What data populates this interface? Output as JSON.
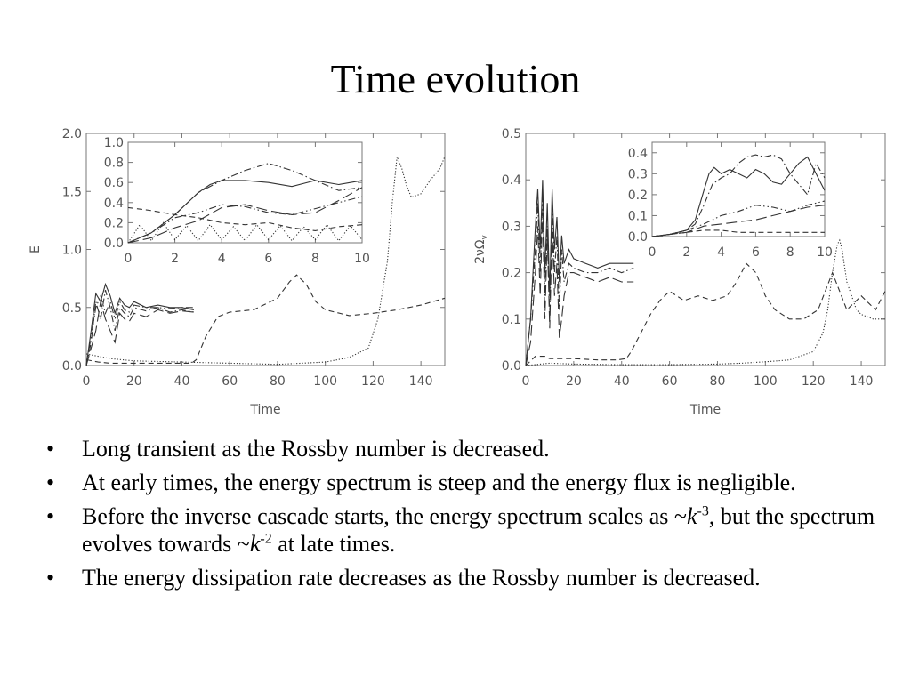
{
  "slide": {
    "title": "Time evolution"
  },
  "chart_data": [
    {
      "id": "left-main",
      "type": "line",
      "xlabel": "Time",
      "ylabel": "E",
      "xlim": [
        0,
        150
      ],
      "ylim": [
        0,
        2.0
      ],
      "xticks": [
        "0",
        "20",
        "40",
        "60",
        "80",
        "100",
        "120",
        "140"
      ],
      "yticks": [
        "0.0",
        "0.5",
        "1.0",
        "1.5",
        "2.0"
      ],
      "series": [
        {
          "style": "dotted",
          "x": [
            0,
            5,
            10,
            20,
            40,
            60,
            80,
            100,
            110,
            118,
            122,
            126,
            128,
            130,
            132,
            134,
            136,
            140,
            144,
            148,
            150
          ],
          "y": [
            0.1,
            0.08,
            0.06,
            0.04,
            0.03,
            0.02,
            0.01,
            0.03,
            0.07,
            0.15,
            0.4,
            0.9,
            1.4,
            1.8,
            1.7,
            1.55,
            1.45,
            1.48,
            1.6,
            1.7,
            1.8
          ]
        },
        {
          "style": "dashed",
          "x": [
            0,
            5,
            10,
            20,
            30,
            40,
            44,
            46,
            50,
            55,
            60,
            70,
            80,
            85,
            88,
            92,
            96,
            100,
            110,
            120,
            130,
            140,
            150
          ],
          "y": [
            0.05,
            0.03,
            0.02,
            0.02,
            0.02,
            0.02,
            0.02,
            0.05,
            0.25,
            0.42,
            0.46,
            0.48,
            0.58,
            0.72,
            0.78,
            0.7,
            0.55,
            0.48,
            0.43,
            0.45,
            0.48,
            0.52,
            0.58
          ]
        },
        {
          "style": "solid",
          "x": [
            0,
            2,
            4,
            6,
            8,
            10,
            12,
            14,
            16,
            18,
            20,
            25,
            30,
            35,
            40,
            45
          ],
          "y": [
            0.0,
            0.3,
            0.62,
            0.55,
            0.7,
            0.6,
            0.45,
            0.58,
            0.52,
            0.5,
            0.55,
            0.5,
            0.52,
            0.5,
            0.5,
            0.48
          ]
        },
        {
          "style": "dash-dot",
          "x": [
            0,
            2,
            4,
            6,
            8,
            10,
            12,
            14,
            16,
            18,
            20,
            25,
            30,
            35,
            40,
            45
          ],
          "y": [
            0.0,
            0.2,
            0.55,
            0.4,
            0.65,
            0.5,
            0.3,
            0.5,
            0.45,
            0.42,
            0.5,
            0.47,
            0.5,
            0.46,
            0.48,
            0.46
          ]
        },
        {
          "style": "dash-dot-dot",
          "x": [
            0,
            2,
            4,
            6,
            8,
            10,
            12,
            14,
            16,
            18,
            20,
            25,
            30,
            35,
            40,
            45
          ],
          "y": [
            0.0,
            0.25,
            0.5,
            0.6,
            0.45,
            0.55,
            0.4,
            0.55,
            0.48,
            0.46,
            0.52,
            0.5,
            0.5,
            0.49,
            0.5,
            0.5
          ]
        },
        {
          "style": "long-dash",
          "x": [
            0,
            2,
            4,
            6,
            8,
            10,
            12,
            14,
            16,
            18,
            20,
            25,
            30,
            35,
            40,
            45
          ],
          "y": [
            0.0,
            0.15,
            0.3,
            0.55,
            0.4,
            0.3,
            0.2,
            0.45,
            0.4,
            0.38,
            0.45,
            0.42,
            0.48,
            0.45,
            0.47,
            0.46
          ]
        }
      ]
    },
    {
      "id": "left-inset",
      "type": "line",
      "xlim": [
        0,
        10
      ],
      "ylim": [
        0,
        1.0
      ],
      "xticks": [
        "0",
        "2",
        "4",
        "6",
        "8",
        "10"
      ],
      "yticks": [
        "0.0",
        "0.2",
        "0.4",
        "0.6",
        "0.8",
        "1.0"
      ],
      "series": [
        {
          "style": "solid",
          "x": [
            0,
            1,
            2,
            3,
            3.5,
            4,
            5,
            6,
            7,
            8,
            9,
            10
          ],
          "y": [
            0.0,
            0.1,
            0.28,
            0.5,
            0.58,
            0.62,
            0.62,
            0.6,
            0.56,
            0.62,
            0.58,
            0.62
          ]
        },
        {
          "style": "dash-dot",
          "x": [
            0,
            1,
            2,
            3,
            4,
            5,
            6,
            7,
            8,
            9,
            10
          ],
          "y": [
            0.0,
            0.1,
            0.28,
            0.5,
            0.62,
            0.72,
            0.79,
            0.72,
            0.62,
            0.52,
            0.55
          ]
        },
        {
          "style": "dash-dot-dot",
          "x": [
            0,
            1,
            2,
            3,
            4,
            5,
            6,
            7,
            8,
            9,
            10
          ],
          "y": [
            0.0,
            0.1,
            0.25,
            0.3,
            0.38,
            0.36,
            0.3,
            0.28,
            0.34,
            0.4,
            0.46
          ]
        },
        {
          "style": "long-dash",
          "x": [
            0,
            1,
            2,
            3,
            4,
            5,
            6,
            7,
            8,
            9,
            10
          ],
          "y": [
            0.0,
            0.05,
            0.15,
            0.22,
            0.35,
            0.38,
            0.32,
            0.28,
            0.3,
            0.42,
            0.55
          ]
        },
        {
          "style": "dashed",
          "x": [
            0,
            1,
            2,
            3,
            4,
            5,
            6,
            7,
            8,
            9,
            10
          ],
          "y": [
            0.35,
            0.32,
            0.28,
            0.25,
            0.2,
            0.18,
            0.2,
            0.15,
            0.12,
            0.16,
            0.18
          ]
        },
        {
          "style": "dotted",
          "x": [
            0,
            0.5,
            1,
            1.5,
            2,
            2.5,
            3,
            3.5,
            4,
            4.5,
            5,
            5.5,
            6,
            6.5,
            7,
            7.5,
            8,
            8.5,
            9,
            9.5,
            10
          ],
          "y": [
            0.0,
            0.18,
            0.02,
            0.2,
            0.03,
            0.17,
            0.02,
            0.18,
            0.03,
            0.16,
            0.02,
            0.18,
            0.03,
            0.17,
            0.02,
            0.16,
            0.03,
            0.18,
            0.02,
            0.17,
            0.03
          ]
        }
      ]
    },
    {
      "id": "right-main",
      "type": "line",
      "xlabel": "Time",
      "ylabel": "2νΩ",
      "ylabel_sub": "v",
      "xlim": [
        0,
        150
      ],
      "ylim": [
        0,
        0.5
      ],
      "xticks": [
        "0",
        "20",
        "40",
        "60",
        "80",
        "100",
        "120",
        "140"
      ],
      "yticks": [
        "0.0",
        "0.1",
        "0.2",
        "0.3",
        "0.4",
        "0.5"
      ],
      "series": [
        {
          "style": "dotted",
          "x": [
            0,
            10,
            20,
            40,
            60,
            80,
            90,
            100,
            110,
            120,
            124,
            126,
            128,
            130,
            131,
            132,
            134,
            136,
            138,
            140,
            145,
            150
          ],
          "y": [
            0.0,
            0.005,
            0.003,
            0.002,
            0.002,
            0.003,
            0.005,
            0.008,
            0.012,
            0.03,
            0.07,
            0.12,
            0.2,
            0.26,
            0.27,
            0.25,
            0.18,
            0.15,
            0.12,
            0.11,
            0.1,
            0.1
          ]
        },
        {
          "style": "dashed",
          "x": [
            0,
            4,
            8,
            10,
            20,
            30,
            38,
            42,
            44,
            48,
            52,
            56,
            60,
            66,
            72,
            78,
            84,
            88,
            92,
            96,
            100,
            104,
            110,
            116,
            122,
            128,
            134,
            140,
            146,
            150
          ],
          "y": [
            0.0,
            0.02,
            0.02,
            0.015,
            0.015,
            0.012,
            0.012,
            0.015,
            0.03,
            0.07,
            0.11,
            0.14,
            0.16,
            0.14,
            0.15,
            0.14,
            0.15,
            0.18,
            0.22,
            0.2,
            0.15,
            0.12,
            0.1,
            0.1,
            0.12,
            0.2,
            0.12,
            0.15,
            0.12,
            0.16
          ]
        },
        {
          "style": "solid",
          "x": [
            0,
            2,
            4,
            5,
            6,
            7,
            8,
            9,
            10,
            11,
            12,
            13,
            14,
            15,
            16,
            18,
            20,
            25,
            30,
            35,
            40,
            45
          ],
          "y": [
            0.0,
            0.1,
            0.3,
            0.38,
            0.25,
            0.4,
            0.2,
            0.35,
            0.15,
            0.38,
            0.25,
            0.32,
            0.18,
            0.28,
            0.22,
            0.25,
            0.23,
            0.22,
            0.21,
            0.22,
            0.22,
            0.22
          ]
        },
        {
          "style": "dash-dot",
          "x": [
            0,
            2,
            4,
            5,
            6,
            7,
            8,
            9,
            10,
            11,
            12,
            13,
            14,
            15,
            16,
            18,
            20,
            25,
            30,
            35,
            40,
            45
          ],
          "y": [
            0.0,
            0.1,
            0.25,
            0.35,
            0.2,
            0.38,
            0.15,
            0.3,
            0.1,
            0.35,
            0.2,
            0.28,
            0.12,
            0.25,
            0.18,
            0.22,
            0.21,
            0.2,
            0.2,
            0.21,
            0.2,
            0.21
          ]
        },
        {
          "style": "long-dash",
          "x": [
            0,
            2,
            4,
            5,
            6,
            7,
            8,
            9,
            10,
            11,
            12,
            13,
            14,
            15,
            16,
            18,
            20,
            25,
            30,
            35,
            40,
            45
          ],
          "y": [
            0.0,
            0.05,
            0.2,
            0.3,
            0.15,
            0.33,
            0.1,
            0.28,
            0.08,
            0.3,
            0.15,
            0.22,
            0.06,
            0.1,
            0.15,
            0.2,
            0.2,
            0.19,
            0.18,
            0.19,
            0.18,
            0.18
          ]
        }
      ]
    },
    {
      "id": "right-inset",
      "type": "line",
      "xlim": [
        0,
        10
      ],
      "ylim": [
        0,
        0.45
      ],
      "xticks": [
        "0",
        "2",
        "4",
        "6",
        "8",
        "10"
      ],
      "yticks": [
        "0.0",
        "0.1",
        "0.2",
        "0.3",
        "0.4"
      ],
      "series": [
        {
          "style": "solid",
          "x": [
            0,
            1,
            2,
            2.5,
            3,
            3.3,
            3.6,
            4,
            4.5,
            5,
            5.5,
            6,
            6.5,
            7,
            7.5,
            8,
            8.5,
            9,
            9.5,
            10
          ],
          "y": [
            0.0,
            0.01,
            0.03,
            0.08,
            0.22,
            0.3,
            0.33,
            0.3,
            0.32,
            0.3,
            0.28,
            0.32,
            0.3,
            0.26,
            0.25,
            0.3,
            0.35,
            0.38,
            0.3,
            0.22
          ]
        },
        {
          "style": "dash-dot",
          "x": [
            0,
            1,
            2,
            2.5,
            3,
            3.5,
            4,
            4.5,
            5,
            5.5,
            6,
            6.5,
            7,
            7.5,
            8,
            8.5,
            9,
            9.5,
            10
          ],
          "y": [
            0.0,
            0.01,
            0.03,
            0.06,
            0.15,
            0.25,
            0.28,
            0.3,
            0.35,
            0.38,
            0.39,
            0.38,
            0.39,
            0.37,
            0.3,
            0.25,
            0.2,
            0.35,
            0.28
          ]
        },
        {
          "style": "dash-dot-dot",
          "x": [
            0,
            1,
            2,
            3,
            4,
            5,
            6,
            7,
            8,
            9,
            10
          ],
          "y": [
            0.0,
            0.01,
            0.03,
            0.06,
            0.1,
            0.12,
            0.15,
            0.14,
            0.12,
            0.15,
            0.17
          ]
        },
        {
          "style": "long-dash",
          "x": [
            0,
            1,
            2,
            3,
            4,
            5,
            6,
            7,
            8,
            9,
            10
          ],
          "y": [
            0.0,
            0.01,
            0.02,
            0.05,
            0.06,
            0.07,
            0.08,
            0.1,
            0.12,
            0.14,
            0.15
          ]
        },
        {
          "style": "dashed",
          "x": [
            0,
            1,
            2,
            3,
            4,
            5,
            6,
            7,
            8,
            9,
            10
          ],
          "y": [
            0.0,
            0.01,
            0.02,
            0.03,
            0.03,
            0.02,
            0.02,
            0.02,
            0.02,
            0.02,
            0.02
          ]
        }
      ]
    }
  ],
  "bullets": [
    {
      "parts": [
        {
          "t": "Long transient as the Rossby number is decreased."
        }
      ]
    },
    {
      "parts": [
        {
          "t": "At early times, the energy spectrum is steep and the energy flux is negligible."
        }
      ]
    },
    {
      "parts": [
        {
          "t": "Before the inverse cascade starts, the energy spectrum scales as ~"
        },
        {
          "t": "k",
          "i": true
        },
        {
          "t": "-3",
          "sup": true
        },
        {
          "t": ", but the spectrum evolves towards ~"
        },
        {
          "t": "k",
          "i": true
        },
        {
          "t": "-2",
          "sup": true
        },
        {
          "t": " at late times."
        }
      ]
    },
    {
      "parts": [
        {
          "t": "The energy dissipation rate decreases as the Rossby number is decreased."
        }
      ]
    }
  ]
}
